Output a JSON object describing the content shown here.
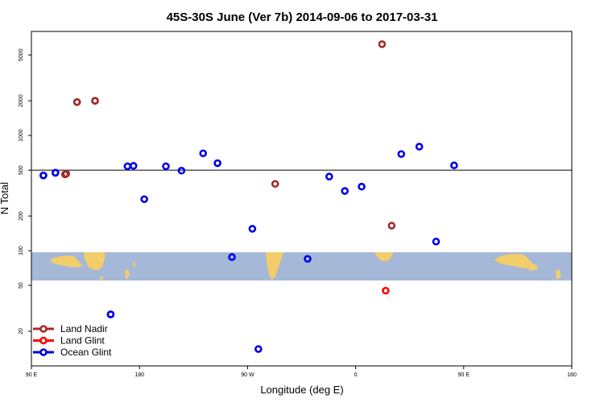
{
  "chart_data": {
    "type": "scatter",
    "title": "45S-30S June (Ver 7b)   2014-09-06 to 2017-03-31",
    "xlabel": "Longitude (deg E)",
    "ylabel": "N Total",
    "y_scale": "log",
    "ylim": [
      10,
      8000
    ],
    "x_axis_offset": "longitude wrapping: left edge is 90 E, increases eastward through 180 and 90 W to 0 and back to 180",
    "x_ticks": [
      "90 E",
      "180",
      "90 W",
      "0",
      "90 E",
      "180"
    ],
    "y_ticks": [
      "20",
      "50",
      "100",
      "200",
      "500",
      "1000",
      "2000",
      "5000"
    ],
    "reference_line": 500,
    "legend_position": "bottom-left",
    "series": [
      {
        "name": "Land Nadir",
        "color": "#a52a2a",
        "points": [
          {
            "x": 118.0,
            "y": 460
          },
          {
            "x": 128.0,
            "y": 1950
          },
          {
            "x": 143.0,
            "y": 2000
          },
          {
            "x": -67.0,
            "y": 380
          },
          {
            "x": 22.0,
            "y": 6200
          },
          {
            "x": 30.0,
            "y": 165
          },
          {
            "x": 119.0,
            "y": 465
          },
          {
            "x": 128.0,
            "y": 1950
          },
          {
            "x": 143.0,
            "y": 2000
          }
        ]
      },
      {
        "name": "Land Glint",
        "color": "#ff0000",
        "points": [
          {
            "x": 25.0,
            "y": 45
          }
        ]
      },
      {
        "name": "Ocean Glint",
        "color": "#0000e6",
        "points": [
          {
            "x": 100.0,
            "y": 450
          },
          {
            "x": 110.0,
            "y": 475
          },
          {
            "x": 156.0,
            "y": 28
          },
          {
            "x": 170.0,
            "y": 540
          },
          {
            "x": -176.0,
            "y": 280
          },
          {
            "x": -158.0,
            "y": 540
          },
          {
            "x": -145.0,
            "y": 495
          },
          {
            "x": -127.0,
            "y": 700
          },
          {
            "x": -115.0,
            "y": 575
          },
          {
            "x": -103.0,
            "y": 88
          },
          {
            "x": -86.0,
            "y": 155
          },
          {
            "x": -81.0,
            "y": 14
          },
          {
            "x": -40.0,
            "y": 85
          },
          {
            "x": -22.0,
            "y": 440
          },
          {
            "x": -9.0,
            "y": 330
          },
          {
            "x": 5.0,
            "y": 360
          },
          {
            "x": 38.0,
            "y": 690
          },
          {
            "x": 53.0,
            "y": 800
          },
          {
            "x": 67.0,
            "y": 120
          },
          {
            "x": 82.0,
            "y": 550
          },
          {
            "x": 100.0,
            "y": 450
          },
          {
            "x": 110.0,
            "y": 475
          },
          {
            "x": 156.0,
            "y": 28
          },
          {
            "x": 175.0,
            "y": 545
          }
        ]
      }
    ]
  }
}
